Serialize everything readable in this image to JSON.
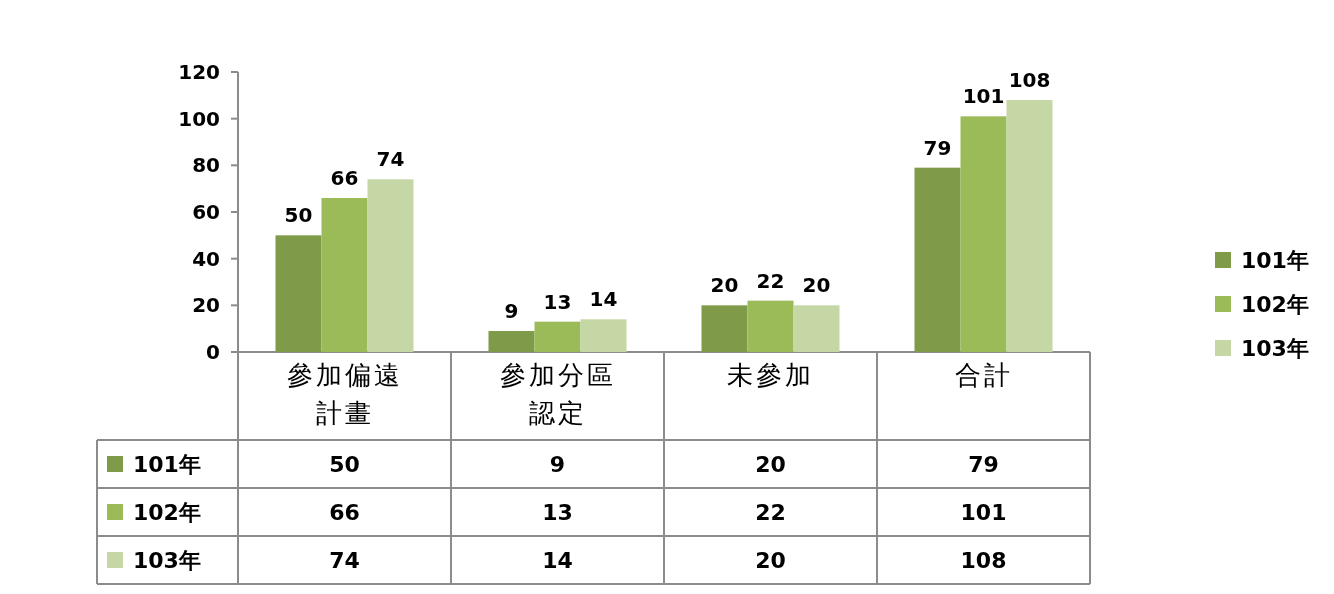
{
  "chart_data": {
    "type": "bar",
    "categories": [
      "參加偏遠計畫",
      "參加分區認定",
      "未參加",
      "合計"
    ],
    "series": [
      {
        "name": "101年",
        "color": "#7f9a48",
        "values": [
          50,
          9,
          20,
          79
        ],
        "value_labels": [
          "50",
          "9",
          "20",
          "79"
        ]
      },
      {
        "name": "102年",
        "color": "#9bbb59",
        "values": [
          66,
          13,
          22,
          101
        ],
        "value_labels": [
          "66",
          "13",
          "22",
          "101"
        ]
      },
      {
        "name": "103年",
        "color": "#c4d7a4",
        "values": [
          74,
          14,
          20,
          108
        ],
        "value_labels": [
          "74",
          "14",
          "20",
          "108"
        ]
      }
    ],
    "ylim": [
      0,
      120
    ],
    "yticks": [
      0,
      20,
      40,
      60,
      80,
      100,
      120
    ],
    "data_labels": true,
    "legend": "right",
    "grid": false
  }
}
